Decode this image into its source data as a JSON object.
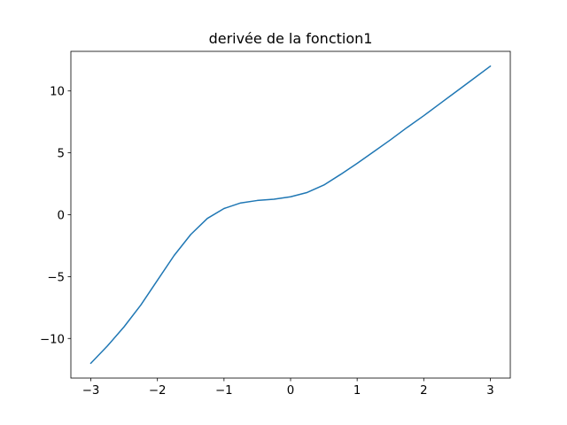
{
  "chart_data": {
    "type": "line",
    "title": "derivée de la fonction1",
    "xlabel": "",
    "ylabel": "",
    "xlim": [
      -3.3,
      3.3
    ],
    "ylim": [
      -13.2,
      13.2
    ],
    "x_ticks": [
      -3,
      -2,
      -1,
      0,
      1,
      2,
      3
    ],
    "x_tick_labels": [
      "−3",
      "−2",
      "−1",
      "0",
      "1",
      "2",
      "3"
    ],
    "y_ticks": [
      -10,
      -5,
      0,
      5,
      10
    ],
    "y_tick_labels": [
      "−10",
      "−5",
      "0",
      "5",
      "10"
    ],
    "grid": false,
    "series": [
      {
        "color": "#1f77b4",
        "x": [
          -3.0,
          -2.75,
          -2.5,
          -2.25,
          -2.0,
          -1.75,
          -1.5,
          -1.25,
          -1.0,
          -0.75,
          -0.5,
          -0.25,
          0.0,
          0.25,
          0.5,
          0.75,
          1.0,
          1.25,
          1.5,
          1.75,
          2.0,
          2.25,
          2.5,
          2.75,
          3.0
        ],
        "y": [
          -12.0,
          -10.6,
          -9.05,
          -7.3,
          -5.3,
          -3.3,
          -1.6,
          -0.3,
          0.5,
          0.95,
          1.15,
          1.25,
          1.45,
          1.8,
          2.4,
          3.25,
          4.15,
          5.1,
          6.05,
          7.05,
          8.0,
          9.0,
          10.0,
          11.0,
          12.0
        ]
      }
    ]
  }
}
